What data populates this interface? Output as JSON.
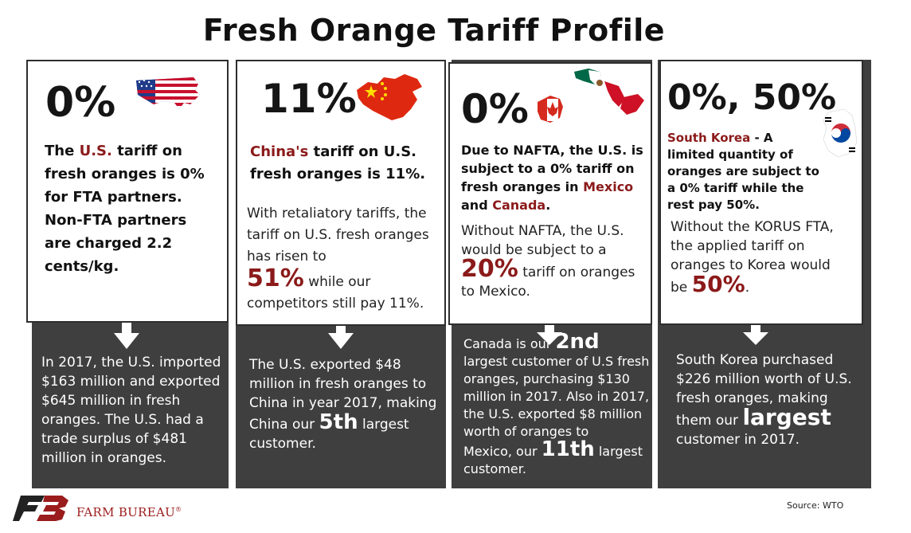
{
  "title": "Fresh Orange Tariff Profile",
  "panels": [
    {
      "headline": "0%",
      "lead_pre": "The ",
      "lead_red": "U.S.",
      "lead_post": " tariff on fresh oranges is 0% for FTA partners. Non-FTA partners are charged 2.2 cents/kg.",
      "bottom": "In 2017, the U.S. imported $163 million and exported $645 million in fresh oranges. The U.S. had a trade surplus of $481 million in oranges.",
      "flag_icon": "usa-flag-map-icon"
    },
    {
      "headline": "11%",
      "lead_red": "China's",
      "lead_post": " tariff on U.S. fresh oranges is 11%.",
      "body_pre": "With retaliatory tariffs, the tariff on U.S. fresh oranges has risen to",
      "body_big": "51%",
      "body_post": " while our competitors still pay 11%.",
      "bottom_pre": "The U.S. exported $48 million in fresh oranges to China in year 2017, making",
      "bottom_line_pre": "China our ",
      "bottom_big": "5th",
      "bottom_line_post": " largest",
      "bottom_end": "customer.",
      "flag_icon": "china-flag-map-icon"
    },
    {
      "headline": "0%",
      "lead_pre": "Due to NAFTA, the U.S. is subject to a 0% tariff on fresh oranges in ",
      "lead_red1": "Mexico",
      "lead_and": " and ",
      "lead_red2": "Canada",
      "lead_end": ".",
      "body_pre": "Without NAFTA, the U.S. would be subject to a",
      "body_big": "20%",
      "body_post": " tariff on oranges to Mexico.",
      "bottom_l1": "Canada is our ",
      "bottom_big1": "2nd",
      "bottom_mid": "largest customer of U.S fresh oranges, purchasing $130 million in 2017. Also in 2017, the U.S. exported $8 million worth of oranges to",
      "bottom_l2": "Mexico, our ",
      "bottom_big2": "11th",
      "bottom_l2_post": " largest",
      "bottom_end": "customer.",
      "flag_icon": "mexico-canada-flag-map-icon"
    },
    {
      "headline": "0%, 50%",
      "lead_red": "South Korea",
      "lead_dash": " -  A",
      "lead_post": "limited quantity of oranges are subject to a 0% tariff while the rest pay 50%.",
      "body_pre": "Without the KORUS FTA, the applied tariff on oranges to Korea would",
      "body_be": "be ",
      "body_big": "50%",
      "body_end": ".",
      "bottom_pre": "South Korea purchased $226 million worth of U.S. fresh oranges, making",
      "bottom_line_pre": "them our ",
      "bottom_big": "largest",
      "bottom_end": "customer in 2017.",
      "flag_icon": "south-korea-flag-map-icon"
    }
  ],
  "footer": {
    "logo_text": "FARM BUREAU",
    "logo_mark": "®",
    "source": "Source: WTO"
  },
  "colors": {
    "dark": "#3f3f3f",
    "accent_red": "#8b1a1a"
  }
}
